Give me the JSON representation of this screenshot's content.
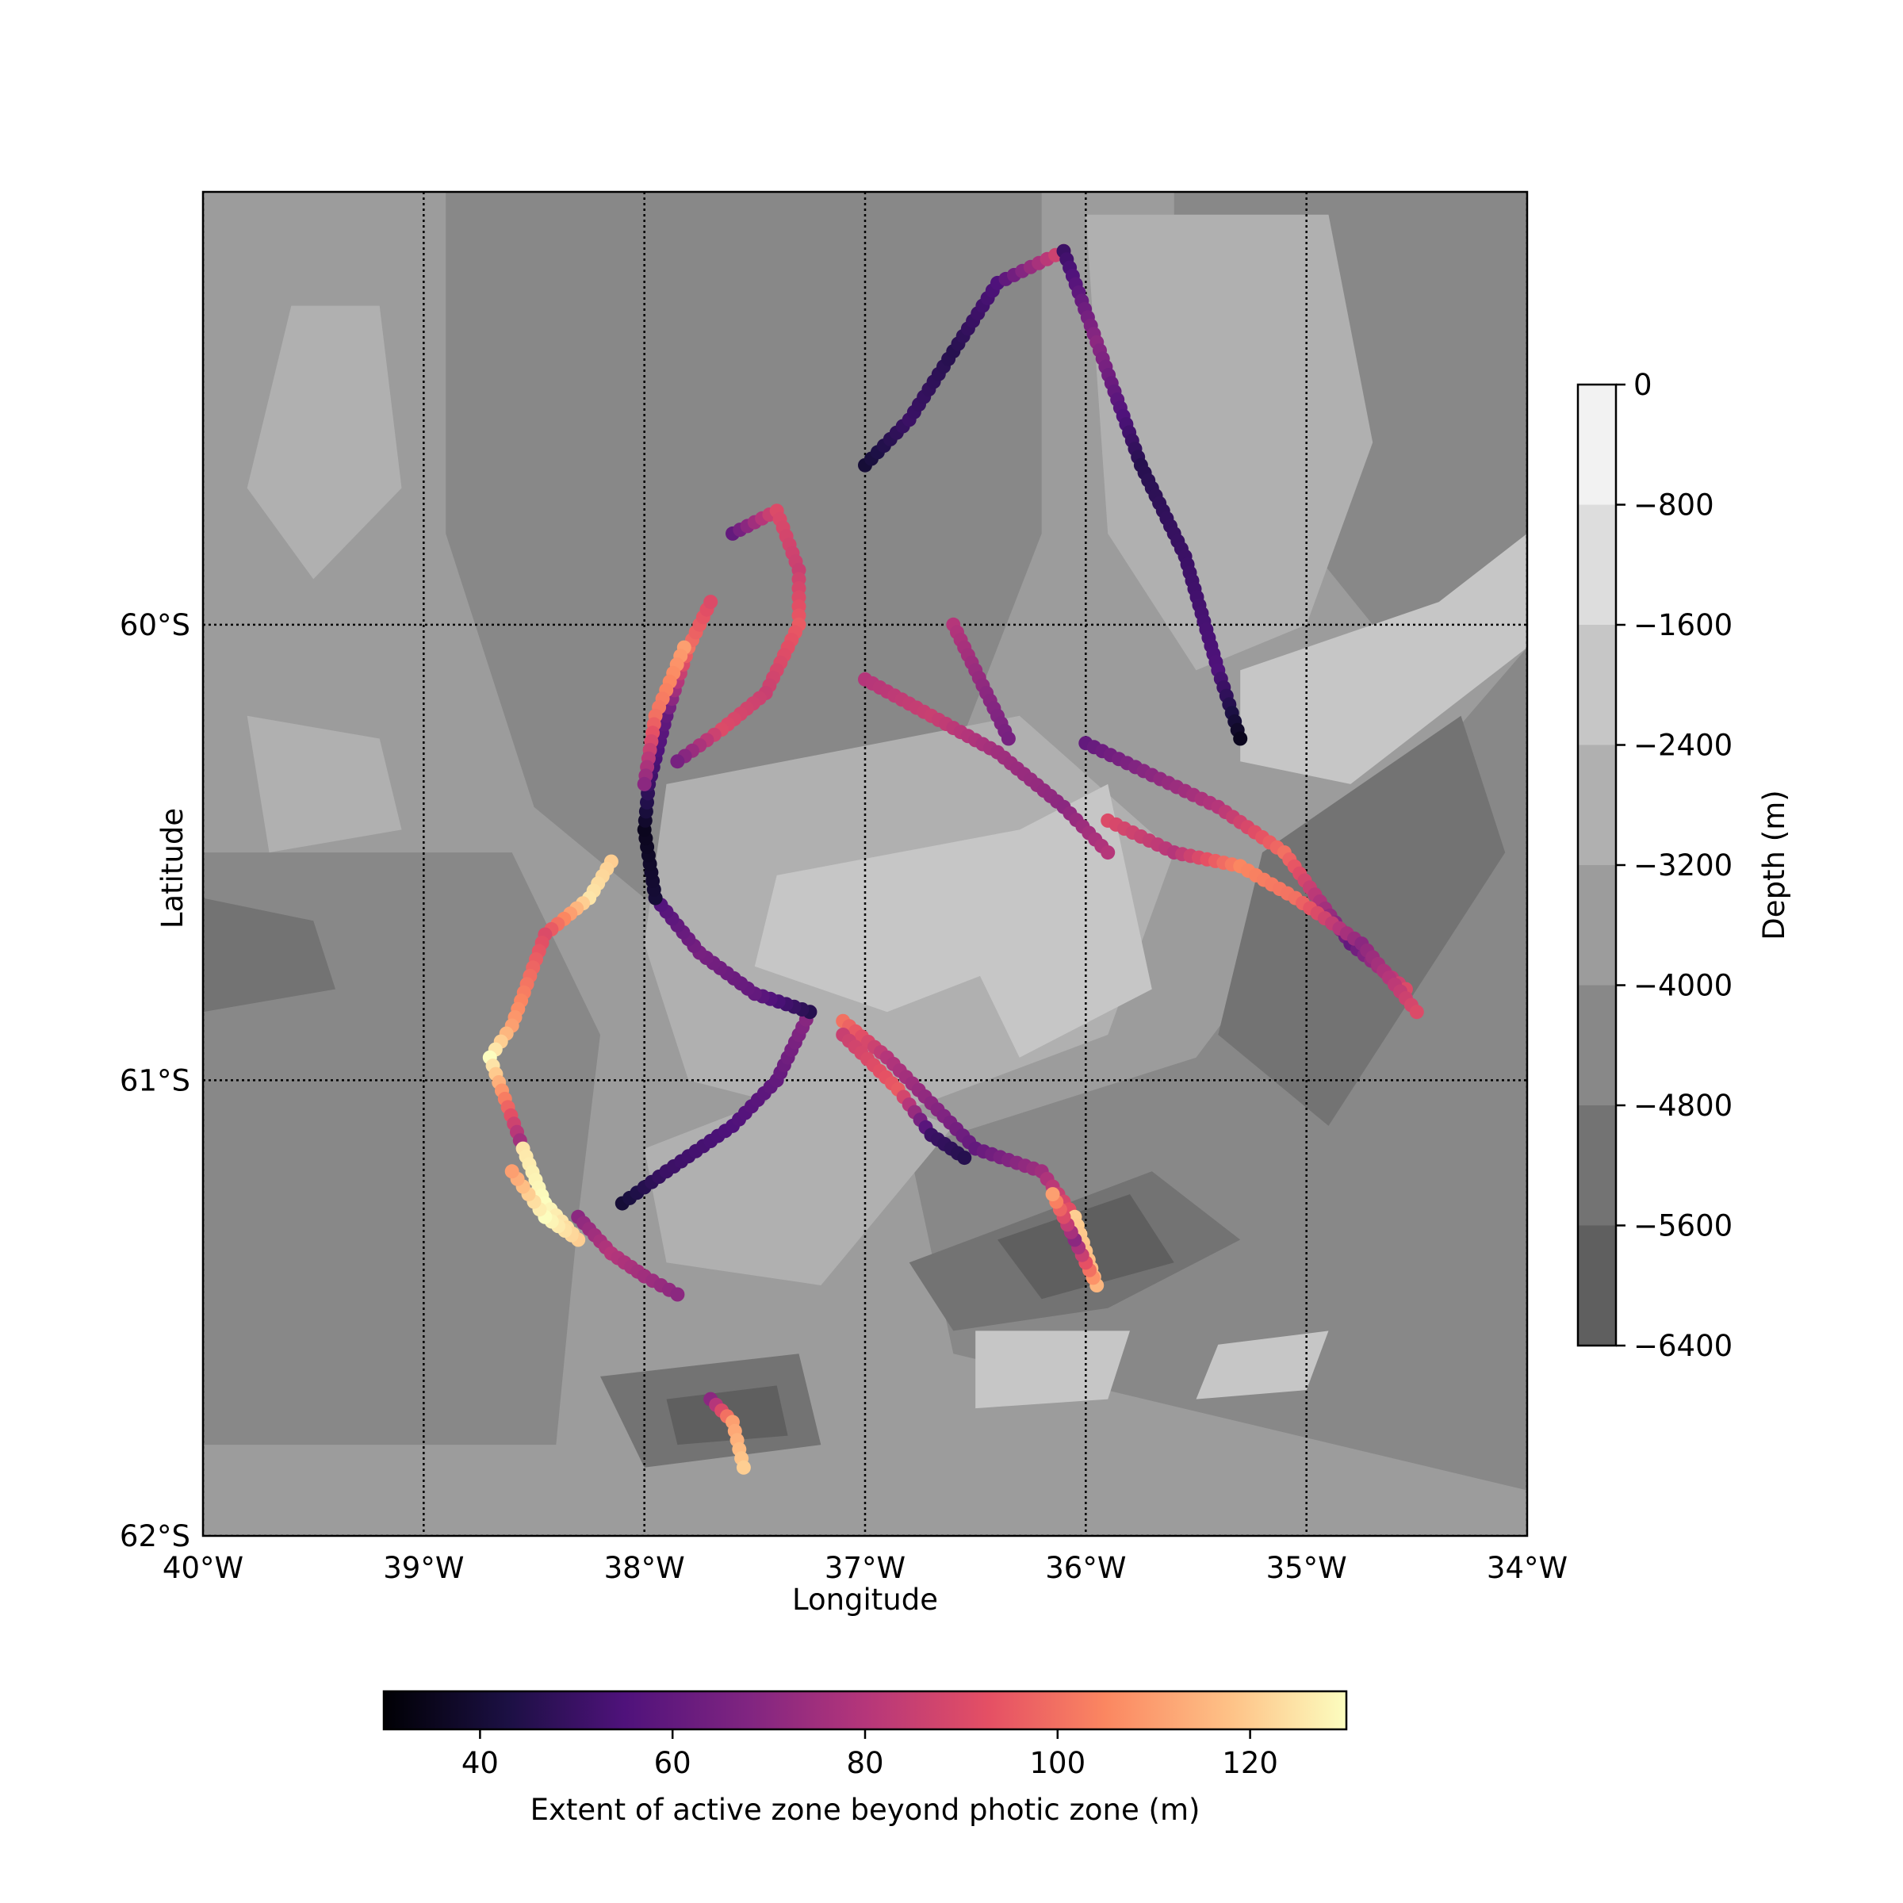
{
  "chart_data": {
    "type": "scatter",
    "title": "",
    "xlabel": "Longitude",
    "ylabel": "Latitude",
    "xlim": [
      -40,
      -34
    ],
    "ylim": [
      -62,
      -59.05
    ],
    "x_ticks": [
      {
        "value": -40,
        "label": "40°W"
      },
      {
        "value": -39,
        "label": "39°W"
      },
      {
        "value": -38,
        "label": "38°W"
      },
      {
        "value": -37,
        "label": "37°W"
      },
      {
        "value": -36,
        "label": "36°W"
      },
      {
        "value": -35,
        "label": "35°W"
      },
      {
        "value": -34,
        "label": "34°W"
      }
    ],
    "y_ticks": [
      {
        "value": -60,
        "label": "60°S"
      },
      {
        "value": -61,
        "label": "61°S"
      },
      {
        "value": -62,
        "label": "62°S"
      }
    ],
    "grid": "dotted",
    "background": {
      "type": "filled-contour",
      "variable": "Depth (m)",
      "colormap": "grey",
      "levels": [
        -6400,
        -5600,
        -4800,
        -4000,
        -3200,
        -2400,
        -1600,
        -800,
        0
      ],
      "colors": [
        "#4a4a4a",
        "#5f5f5f",
        "#737373",
        "#888888",
        "#9c9c9c",
        "#b0b0b0",
        "#c6c6c6",
        "#dddddd",
        "#f2f2f2"
      ],
      "regions": [
        {
          "band": 3,
          "points": [
            [
              -38.9,
              -59.05
            ],
            [
              -36.2,
              -59.05
            ],
            [
              -36.2,
              -59.8
            ],
            [
              -36.6,
              -60.3
            ],
            [
              -37.3,
              -60.6
            ],
            [
              -38.0,
              -60.6
            ],
            [
              -38.5,
              -60.4
            ],
            [
              -38.9,
              -59.8
            ]
          ]
        },
        {
          "band": 3,
          "points": [
            [
              -35.6,
              -59.05
            ],
            [
              -34.0,
              -59.05
            ],
            [
              -34.0,
              -59.9
            ],
            [
              -34.7,
              -60.0
            ],
            [
              -35.2,
              -59.7
            ],
            [
              -35.6,
              -59.3
            ]
          ]
        },
        {
          "band": 3,
          "points": [
            [
              -40,
              -60.5
            ],
            [
              -38.6,
              -60.5
            ],
            [
              -38.2,
              -60.9
            ],
            [
              -38.3,
              -61.3
            ],
            [
              -38.4,
              -61.8
            ],
            [
              -40,
              -61.8
            ]
          ]
        },
        {
          "band": 3,
          "points": [
            [
              -36.8,
              -61.15
            ],
            [
              -35.5,
              -60.95
            ],
            [
              -34.8,
              -60.5
            ],
            [
              -34.0,
              -60.05
            ],
            [
              -34.0,
              -61.9
            ],
            [
              -36.6,
              -61.6
            ]
          ]
        },
        {
          "band": 5,
          "points": [
            [
              -37.9,
              -60.35
            ],
            [
              -36.3,
              -60.2
            ],
            [
              -35.6,
              -60.5
            ],
            [
              -35.9,
              -60.9
            ],
            [
              -37.0,
              -61.1
            ],
            [
              -37.8,
              -61.0
            ],
            [
              -38.0,
              -60.7
            ]
          ]
        },
        {
          "band": 5,
          "points": [
            [
              -37.2,
              -61.0
            ],
            [
              -36.6,
              -61.1
            ],
            [
              -37.2,
              -61.45
            ],
            [
              -37.9,
              -61.4
            ],
            [
              -38.0,
              -61.15
            ]
          ]
        },
        {
          "band": 6,
          "points": [
            [
              -37.4,
              -60.55
            ],
            [
              -36.3,
              -60.45
            ],
            [
              -36.1,
              -60.7
            ],
            [
              -36.9,
              -60.85
            ],
            [
              -37.5,
              -60.75
            ]
          ]
        },
        {
          "band": 6,
          "points": [
            [
              -36.7,
              -60.55
            ],
            [
              -35.9,
              -60.35
            ],
            [
              -35.7,
              -60.8
            ],
            [
              -36.3,
              -60.95
            ]
          ]
        },
        {
          "band": 6,
          "points": [
            [
              -35.8,
              -59.2
            ],
            [
              -35.2,
              -59.2
            ],
            [
              -35.0,
              -59.55
            ],
            [
              -35.5,
              -59.8
            ],
            [
              -35.9,
              -59.6
            ]
          ]
        },
        {
          "band": 5,
          "points": [
            [
              -36.0,
              -59.1
            ],
            [
              -34.9,
              -59.1
            ],
            [
              -34.7,
              -59.6
            ],
            [
              -35.0,
              -60.0
            ],
            [
              -35.5,
              -60.1
            ],
            [
              -35.9,
              -59.8
            ]
          ]
        },
        {
          "band": 6,
          "points": [
            [
              -35.3,
              -60.1
            ],
            [
              -34.4,
              -59.95
            ],
            [
              -34.0,
              -59.8
            ],
            [
              -34.0,
              -60.05
            ],
            [
              -34.8,
              -60.35
            ],
            [
              -35.3,
              -60.3
            ]
          ]
        },
        {
          "band": 2,
          "points": [
            [
              -36.8,
              -61.4
            ],
            [
              -35.7,
              -61.2
            ],
            [
              -35.3,
              -61.35
            ],
            [
              -35.9,
              -61.5
            ],
            [
              -36.6,
              -61.55
            ]
          ]
        },
        {
          "band": 1,
          "points": [
            [
              -36.4,
              -61.35
            ],
            [
              -35.8,
              -61.25
            ],
            [
              -35.6,
              -61.4
            ],
            [
              -36.2,
              -61.48
            ]
          ]
        },
        {
          "band": 2,
          "points": [
            [
              -38.2,
              -61.65
            ],
            [
              -37.3,
              -61.6
            ],
            [
              -37.2,
              -61.8
            ],
            [
              -38.0,
              -61.85
            ]
          ]
        },
        {
          "band": 1,
          "points": [
            [
              -37.9,
              -61.7
            ],
            [
              -37.4,
              -61.67
            ],
            [
              -37.35,
              -61.78
            ],
            [
              -37.85,
              -61.8
            ]
          ]
        },
        {
          "band": 2,
          "points": [
            [
              -40,
              -60.6
            ],
            [
              -39.5,
              -60.65
            ],
            [
              -39.4,
              -60.8
            ],
            [
              -40,
              -60.85
            ]
          ]
        },
        {
          "band": 2,
          "points": [
            [
              -35.2,
              -60.5
            ],
            [
              -34.3,
              -60.2
            ],
            [
              -34.1,
              -60.5
            ],
            [
              -34.9,
              -61.1
            ],
            [
              -35.4,
              -60.9
            ]
          ]
        },
        {
          "band": 6,
          "points": [
            [
              -36.5,
              -61.55
            ],
            [
              -35.8,
              -61.55
            ],
            [
              -35.9,
              -61.7
            ],
            [
              -36.5,
              -61.72
            ]
          ]
        },
        {
          "band": 6,
          "points": [
            [
              -35.4,
              -61.58
            ],
            [
              -34.9,
              -61.55
            ],
            [
              -35.0,
              -61.68
            ],
            [
              -35.5,
              -61.7
            ]
          ]
        },
        {
          "band": 5,
          "points": [
            [
              -39.6,
              -59.3
            ],
            [
              -39.2,
              -59.3
            ],
            [
              -39.1,
              -59.7
            ],
            [
              -39.5,
              -59.9
            ],
            [
              -39.8,
              -59.7
            ]
          ]
        },
        {
          "band": 5,
          "points": [
            [
              -39.8,
              -60.2
            ],
            [
              -39.2,
              -60.25
            ],
            [
              -39.1,
              -60.45
            ],
            [
              -39.7,
              -60.5
            ]
          ]
        }
      ]
    },
    "tracks": [
      {
        "points": [
          [
            -38.3,
            -61.3
          ],
          [
            -38.15,
            -61.38
          ],
          [
            -38.0,
            -61.43
          ],
          [
            -37.85,
            -61.47
          ]
        ],
        "values": [
          70,
          80,
          75,
          70
        ]
      },
      {
        "points": [
          [
            -38.1,
            -61.27
          ],
          [
            -37.9,
            -61.2
          ],
          [
            -37.6,
            -61.1
          ],
          [
            -37.4,
            -61.0
          ],
          [
            -37.25,
            -60.85
          ]
        ],
        "values": [
          40,
          50,
          55,
          60,
          70
        ]
      },
      {
        "points": [
          [
            -37.25,
            -60.85
          ],
          [
            -37.5,
            -60.81
          ],
          [
            -37.75,
            -60.72
          ],
          [
            -37.95,
            -60.6
          ]
        ],
        "values": [
          45,
          60,
          65,
          55
        ]
      },
      {
        "points": [
          [
            -37.95,
            -60.6
          ],
          [
            -38.0,
            -60.45
          ],
          [
            -37.98,
            -60.35
          ],
          [
            -37.9,
            -60.2
          ],
          [
            -37.8,
            -60.05
          ],
          [
            -37.7,
            -59.95
          ]
        ],
        "values": [
          40,
          35,
          50,
          60,
          100,
          90
        ]
      },
      {
        "points": [
          [
            -38.15,
            -60.52
          ],
          [
            -38.25,
            -60.6
          ],
          [
            -38.45,
            -60.68
          ],
          [
            -38.6,
            -60.88
          ],
          [
            -38.7,
            -60.95
          ],
          [
            -38.55,
            -61.15
          ]
        ],
        "values": [
          120,
          125,
          90,
          110,
          130,
          70
        ]
      },
      {
        "points": [
          [
            -38.55,
            -61.15
          ],
          [
            -38.45,
            -61.27
          ],
          [
            -38.3,
            -61.35
          ],
          [
            -38.45,
            -61.3
          ],
          [
            -38.6,
            -61.2
          ]
        ],
        "values": [
          125,
          130,
          120,
          130,
          110
        ]
      },
      {
        "points": [
          [
            -37.82,
            -60.05
          ],
          [
            -37.95,
            -60.2
          ],
          [
            -38.0,
            -60.35
          ]
        ],
        "values": [
          110,
          100,
          70
        ]
      },
      {
        "points": [
          [
            -37.6,
            -59.8
          ],
          [
            -37.4,
            -59.75
          ],
          [
            -37.3,
            -59.88
          ],
          [
            -37.3,
            -60.0
          ],
          [
            -37.45,
            -60.15
          ],
          [
            -37.65,
            -60.23
          ],
          [
            -37.85,
            -60.3
          ]
        ],
        "values": [
          60,
          90,
          85,
          95,
          85,
          90,
          65
        ]
      },
      {
        "points": [
          [
            -37.0,
            -59.65
          ],
          [
            -36.8,
            -59.55
          ],
          [
            -36.6,
            -59.4
          ],
          [
            -36.4,
            -59.25
          ],
          [
            -36.1,
            -59.18
          ]
        ],
        "values": [
          40,
          50,
          45,
          55,
          90
        ]
      },
      {
        "points": [
          [
            -36.1,
            -59.18
          ],
          [
            -35.95,
            -59.38
          ],
          [
            -35.75,
            -59.65
          ],
          [
            -35.55,
            -59.85
          ],
          [
            -35.4,
            -60.1
          ],
          [
            -35.3,
            -60.25
          ]
        ],
        "values": [
          50,
          70,
          45,
          50,
          55,
          35
        ]
      },
      {
        "points": [
          [
            -36.6,
            -60.0
          ],
          [
            -36.45,
            -60.15
          ],
          [
            -36.35,
            -60.25
          ]
        ],
        "values": [
          80,
          70,
          65
        ]
      },
      {
        "points": [
          [
            -37.0,
            -60.12
          ],
          [
            -36.7,
            -60.2
          ],
          [
            -36.4,
            -60.28
          ],
          [
            -36.1,
            -60.4
          ],
          [
            -35.9,
            -60.5
          ]
        ],
        "values": [
          80,
          85,
          75,
          70,
          80
        ]
      },
      {
        "points": [
          [
            -36.0,
            -60.26
          ],
          [
            -35.7,
            -60.33
          ],
          [
            -35.4,
            -60.4
          ],
          [
            -35.1,
            -60.5
          ],
          [
            -34.8,
            -60.7
          ],
          [
            -34.55,
            -60.8
          ]
        ],
        "values": [
          60,
          70,
          80,
          100,
          60,
          90
        ]
      },
      {
        "points": [
          [
            -35.9,
            -60.43
          ],
          [
            -35.6,
            -60.5
          ],
          [
            -35.3,
            -60.53
          ],
          [
            -35.05,
            -60.6
          ],
          [
            -34.75,
            -60.7
          ],
          [
            -34.5,
            -60.85
          ]
        ],
        "values": [
          90,
          80,
          105,
          100,
          70,
          90
        ]
      },
      {
        "points": [
          [
            -37.1,
            -60.87
          ],
          [
            -36.9,
            -60.95
          ],
          [
            -36.7,
            -61.05
          ],
          [
            -36.5,
            -61.15
          ],
          [
            -36.2,
            -61.2
          ],
          [
            -36.05,
            -61.3
          ]
        ],
        "values": [
          100,
          80,
          70,
          60,
          75,
          95
        ]
      },
      {
        "points": [
          [
            -36.05,
            -61.3
          ],
          [
            -35.95,
            -61.45
          ],
          [
            -36.05,
            -61.35
          ],
          [
            -36.15,
            -61.25
          ]
        ],
        "values": [
          120,
          115,
          70,
          110
        ]
      },
      {
        "points": [
          [
            -37.1,
            -60.9
          ],
          [
            -36.85,
            -61.02
          ],
          [
            -36.7,
            -61.12
          ],
          [
            -36.55,
            -61.17
          ]
        ],
        "values": [
          85,
          95,
          50,
          45
        ]
      },
      {
        "points": [
          [
            -37.7,
            -61.7
          ],
          [
            -37.6,
            -61.75
          ],
          [
            -37.55,
            -61.85
          ]
        ],
        "values": [
          70,
          110,
          120
        ]
      }
    ],
    "colorbars": [
      {
        "label": "Depth (m)",
        "ticks": [
          0,
          -800,
          -1600,
          -2400,
          -3200,
          -4000,
          -4800,
          -5600,
          -6400
        ],
        "tick_labels": [
          "0",
          "−800",
          "−1600",
          "−2400",
          "−3200",
          "−4000",
          "−4800",
          "−5600",
          "−6400"
        ],
        "orientation": "vertical",
        "position": "right"
      },
      {
        "label": "Extent of active zone beyond photic zone (m)",
        "range": [
          30,
          130
        ],
        "ticks": [
          40,
          60,
          80,
          100,
          120
        ],
        "tick_labels": [
          "40",
          "60",
          "80",
          "100",
          "120"
        ],
        "colormap": "magma",
        "orientation": "horizontal",
        "position": "bottom"
      }
    ]
  }
}
